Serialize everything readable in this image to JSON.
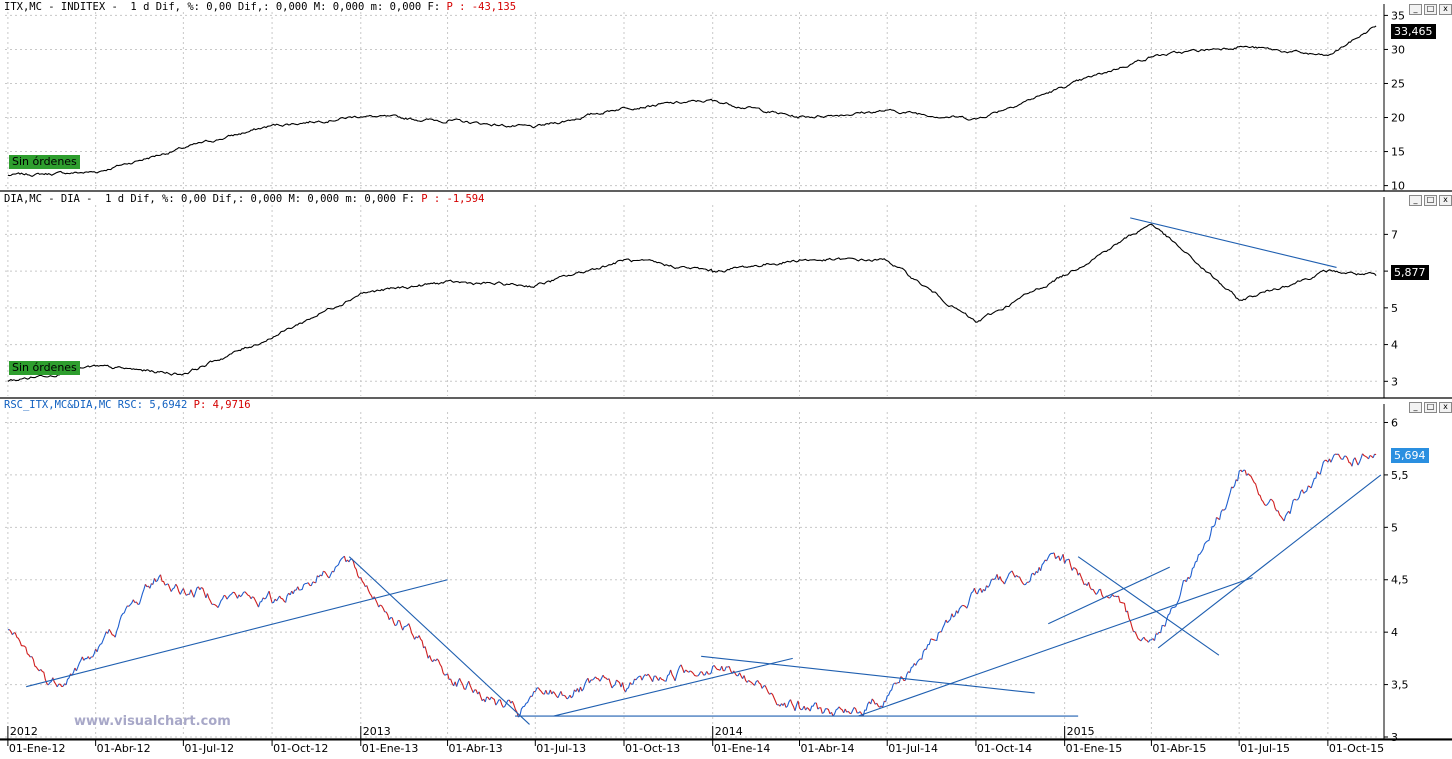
{
  "panels": {
    "itx": {
      "header": {
        "prefix": "ITX,MC - INDITEX -  1 d Dif, %: 0,00 Dif,: 0,000 M: 0,000 m: 0,000 F:",
        "p_value": " P : -43,135"
      },
      "tag": "Sin órdenes",
      "last_value": "33,465"
    },
    "dia": {
      "header": {
        "prefix": "DIA,MC - DIA -  1 d Dif, %: 0,00 Dif,: 0,000 M: 0,000 m: 0,000 F:",
        "p_value": " P : -1,594"
      },
      "tag": "Sin órdenes",
      "last_value": "5,877"
    },
    "rsc": {
      "header": {
        "prefix": "RSC_ITX,MC&DIA,MC RSC: 5,6942",
        "p_value": " P: 4,9716"
      },
      "last_value": "5,694"
    }
  },
  "window_buttons": {
    "minimize": "_",
    "restore": "□",
    "close": "x"
  },
  "watermark": "www.visualchart.com",
  "colors": {
    "price_line": "#000000",
    "rsc_up": "#2060d0",
    "rsc_down": "#d02020",
    "trendline": "#1f5fb0",
    "grid": "#c8c8c8",
    "tag": "#2e9e2e"
  },
  "chart_data": [
    {
      "type": "line",
      "panel": "ITX",
      "yticks": [
        10,
        15,
        20,
        25,
        30,
        35
      ],
      "ylim": [
        9.5,
        35.5
      ],
      "series": [
        {
          "name": "ITX,MC",
          "x": [
            "2012-01-01",
            "2012-04-01",
            "2012-07-01",
            "2012-10-01",
            "2013-01-01",
            "2013-04-01",
            "2013-07-01",
            "2013-10-01",
            "2014-01-01",
            "2014-04-01",
            "2014-07-01",
            "2014-10-01",
            "2015-01-01",
            "2015-04-01",
            "2015-07-01",
            "2015-10-01",
            "2015-11-20"
          ],
          "values": [
            11.5,
            12.0,
            15.5,
            18.8,
            20.2,
            19.5,
            18.5,
            21.5,
            22.5,
            20.0,
            21.0,
            19.8,
            24.5,
            29.0,
            30.5,
            29.0,
            33.465
          ]
        }
      ]
    },
    {
      "type": "line",
      "panel": "DIA",
      "yticks": [
        3,
        4,
        5,
        6,
        7
      ],
      "ylim": [
        2.6,
        7.8
      ],
      "series": [
        {
          "name": "DIA,MC",
          "x": [
            "2012-01-01",
            "2012-04-01",
            "2012-07-01",
            "2012-10-01",
            "2013-01-01",
            "2013-04-01",
            "2013-07-01",
            "2013-10-01",
            "2014-01-01",
            "2014-04-01",
            "2014-07-01",
            "2014-10-01",
            "2015-01-01",
            "2015-04-01",
            "2015-07-01",
            "2015-10-01",
            "2015-11-20"
          ],
          "values": [
            3.0,
            3.4,
            3.2,
            4.2,
            5.4,
            5.7,
            5.6,
            6.3,
            6.0,
            6.3,
            6.3,
            4.6,
            5.9,
            7.3,
            5.2,
            6.0,
            5.877
          ]
        }
      ]
    },
    {
      "type": "line",
      "panel": "RSC",
      "yticks": [
        3,
        3.5,
        4,
        4.5,
        5,
        5.5,
        6
      ],
      "ylim": [
        3.0,
        6.1
      ],
      "x_ticks": [
        "01-Ene-12",
        "01-Abr-12",
        "01-Jul-12",
        "01-Oct-12",
        "01-Ene-13",
        "01-Abr-13",
        "01-Jul-13",
        "01-Oct-13",
        "01-Ene-14",
        "01-Abr-14",
        "01-Jul-14",
        "01-Oct-14",
        "01-Ene-15",
        "01-Abr-15",
        "01-Jul-15",
        "01-Oct-15"
      ],
      "year_labels": [
        "2012",
        "2013",
        "2014",
        "2015"
      ],
      "series": [
        {
          "name": "RSC_ITX,MC&DIA,MC",
          "x": [
            "2012-01-01",
            "2012-02-15",
            "2012-04-01",
            "2012-06-01",
            "2012-07-01",
            "2012-10-01",
            "2012-12-15",
            "2013-01-01",
            "2013-04-01",
            "2013-06-15",
            "2013-07-01",
            "2013-10-01",
            "2014-01-01",
            "2014-04-01",
            "2014-05-20",
            "2014-07-01",
            "2014-10-01",
            "2015-01-01",
            "2015-04-01",
            "2015-05-01",
            "2015-07-01",
            "2015-08-15",
            "2015-10-01",
            "2015-11-20"
          ],
          "values": [
            4.0,
            3.5,
            3.8,
            4.5,
            4.4,
            4.3,
            4.7,
            4.5,
            3.6,
            3.2,
            3.4,
            3.5,
            3.7,
            3.3,
            3.2,
            3.4,
            4.4,
            4.7,
            3.9,
            4.4,
            5.5,
            5.1,
            5.6,
            5.694
          ]
        }
      ]
    }
  ]
}
